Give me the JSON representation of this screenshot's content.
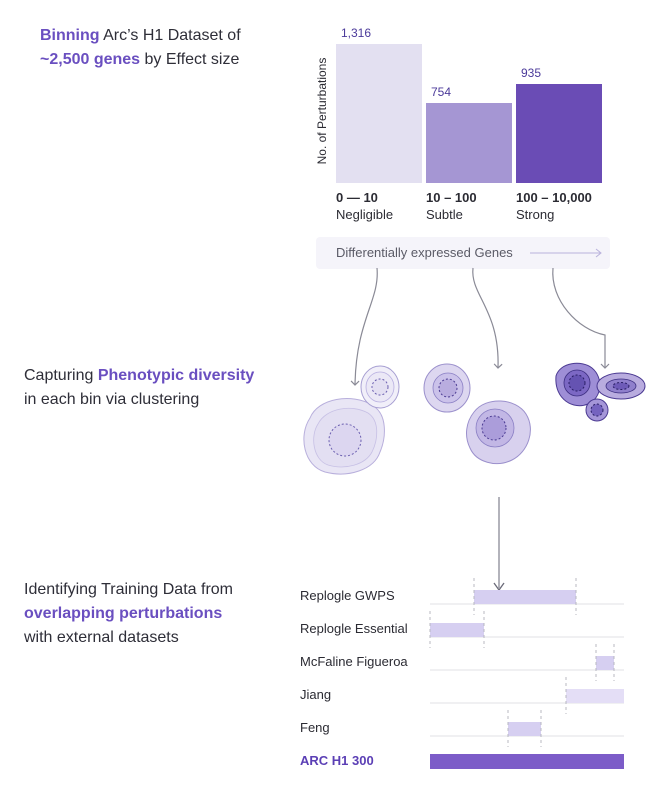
{
  "section1": {
    "highlight1": "Binning",
    "text1": " Arc’s H1 Dataset of",
    "highlight2": "~2,500 genes",
    "text2": " by Effect size"
  },
  "section2": {
    "text1": "Capturing ",
    "highlight1": "Phenotypic diversity",
    "text2": "in each bin via clustering"
  },
  "section3": {
    "text1": "Identifying Training Data from",
    "highlight1": "overlapping perturbations",
    "text2": "with external datasets"
  },
  "chart_data": {
    "type": "bar",
    "ylabel": "No. of Perturbations",
    "xlabel": "Differentially expressed Genes",
    "categories": [
      "0 — 10",
      "10 – 100",
      "100 – 10,000"
    ],
    "category_names": [
      "Negligible",
      "Subtle",
      "Strong"
    ],
    "values": [
      1316,
      754,
      935
    ],
    "value_labels": [
      "1,316",
      "754",
      "935"
    ],
    "colors": [
      "#e3e0f1",
      "#a596d3",
      "#6a4cb5"
    ],
    "ylim": [
      0,
      1316
    ]
  },
  "datasets": [
    {
      "name": "Replogle GWPS"
    },
    {
      "name": "Replogle Essential"
    },
    {
      "name": "McFaline Figueroa"
    },
    {
      "name": "Jiang"
    },
    {
      "name": "Feng"
    },
    {
      "name": "ARC H1 300"
    }
  ],
  "colors": {
    "accent": "#6a4fc0",
    "overlap_fill": "#d6cff1",
    "arc_bar": "#7c5cc8",
    "track": "#e2e2e6"
  }
}
